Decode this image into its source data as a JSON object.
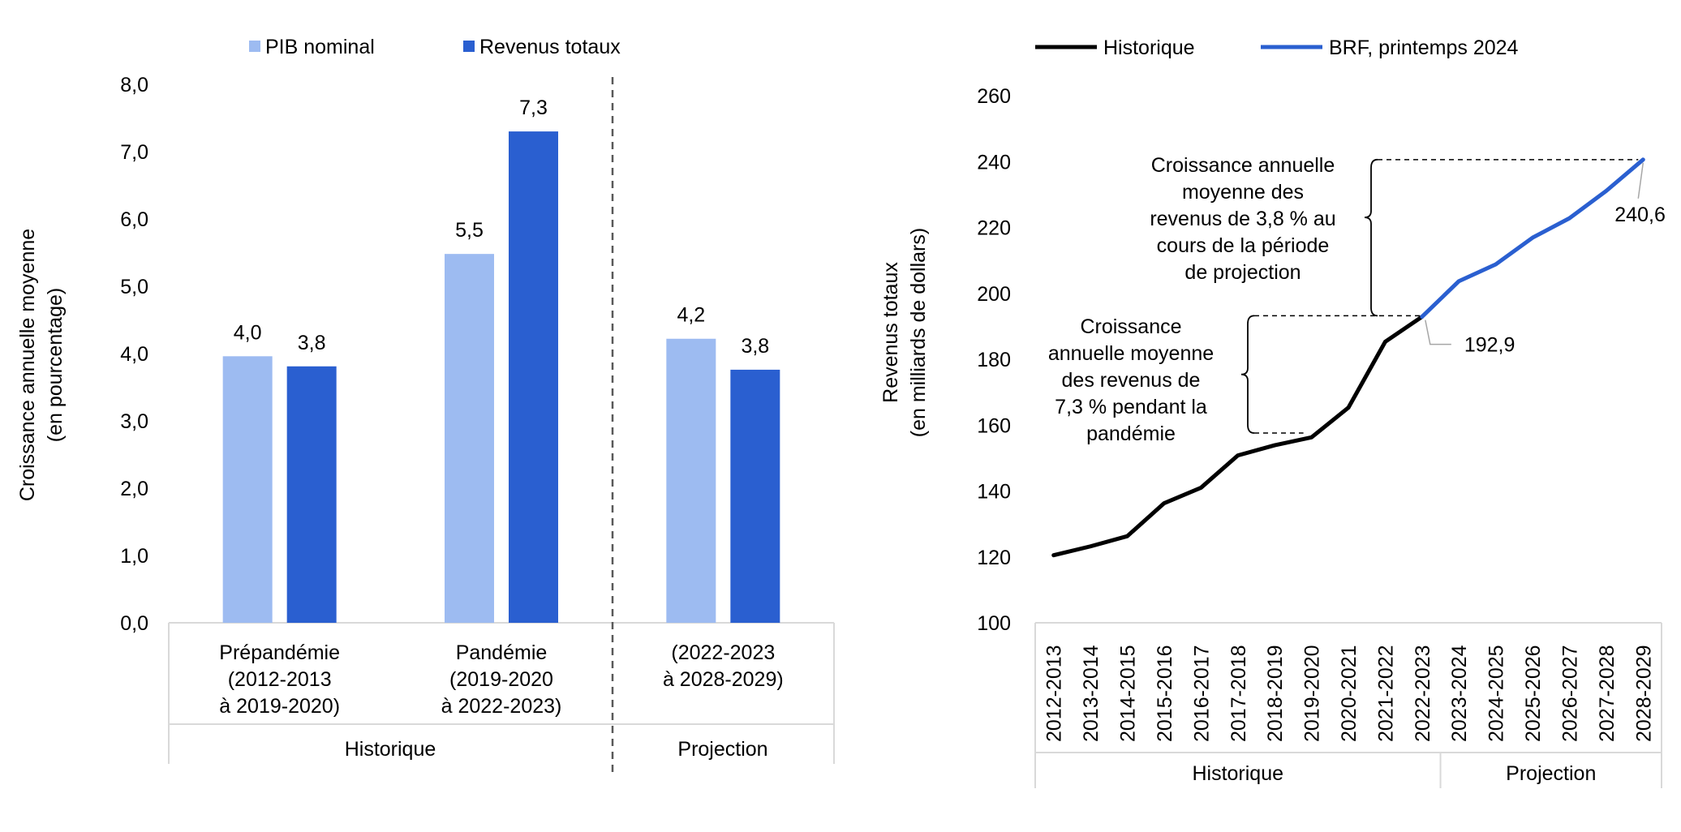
{
  "colors": {
    "light_blue": "#9dbbf1",
    "dark_blue": "#2a5fd0",
    "black": "#000000",
    "grid_axis": "#d9d9d9",
    "divider": "#595959"
  },
  "chart_data": [
    {
      "type": "bar",
      "ylabel": [
        "Croissance annuelle moyenne",
        "(en pourcentage)"
      ],
      "ylim": [
        0,
        8
      ],
      "yticks": [
        "0,0",
        "1,0",
        "2,0",
        "3,0",
        "4,0",
        "5,0",
        "6,0",
        "7,0",
        "8,0"
      ],
      "categories": [
        [
          "Prépandémie",
          "(2012-2013",
          "à 2019-2020)"
        ],
        [
          "Pandémie",
          "(2019-2020",
          "à 2022-2023)"
        ],
        [
          "(2022-2023",
          "à 2028-2029)"
        ]
      ],
      "groups": [
        "Historique",
        "Projection"
      ],
      "series": [
        {
          "name": "PIB nominal",
          "values": [
            3.96,
            5.48,
            4.22
          ],
          "labels": [
            "4,0",
            "5,5",
            "4,2"
          ],
          "color": "#9dbbf1"
        },
        {
          "name": "Revenus totaux",
          "values": [
            3.81,
            7.3,
            3.76
          ],
          "labels": [
            "3,8",
            "7,3",
            "3,8"
          ],
          "color": "#2a5fd0"
        }
      ],
      "legend": "top"
    },
    {
      "type": "line",
      "ylabel": [
        "Revenus totaux",
        "(en milliards de dollars)"
      ],
      "ylim": [
        100,
        260
      ],
      "yticks": [
        "100",
        "120",
        "140",
        "160",
        "180",
        "200",
        "220",
        "240",
        "260"
      ],
      "x": [
        "2012-2013",
        "2013-2014",
        "2014-2015",
        "2015-2016",
        "2016-2017",
        "2017-2018",
        "2018-2019",
        "2019-2020",
        "2020-2021",
        "2021-2022",
        "2022-2023",
        "2023-2024",
        "2024-2025",
        "2025-2026",
        "2026-2027",
        "2027-2028",
        "2028-2029"
      ],
      "groups": [
        "Historique",
        "Projection"
      ],
      "series": [
        {
          "name": "Historique",
          "values": [
            120.5,
            123.2,
            126.3,
            136.3,
            141.0,
            150.8,
            153.9,
            156.3,
            165.3,
            185.3,
            192.9,
            null,
            null,
            null,
            null,
            null,
            null
          ],
          "color": "#000000"
        },
        {
          "name": "BRF, printemps 2024",
          "values": [
            null,
            null,
            null,
            null,
            null,
            null,
            null,
            null,
            null,
            null,
            192.9,
            203.7,
            208.8,
            216.9,
            222.8,
            231.1,
            240.6
          ],
          "color": "#2a5fd0"
        }
      ],
      "point_labels": [
        "192,9",
        "240,6"
      ],
      "annotations": [
        [
          "Croissance",
          "annuelle moyenne",
          "des revenus de",
          "7,3 % pendant la",
          "pandémie"
        ],
        [
          "Croissance annuelle",
          "moyenne des",
          "revenus de 3,8 % au",
          "cours de la période",
          "de projection"
        ]
      ],
      "legend": "top"
    }
  ]
}
